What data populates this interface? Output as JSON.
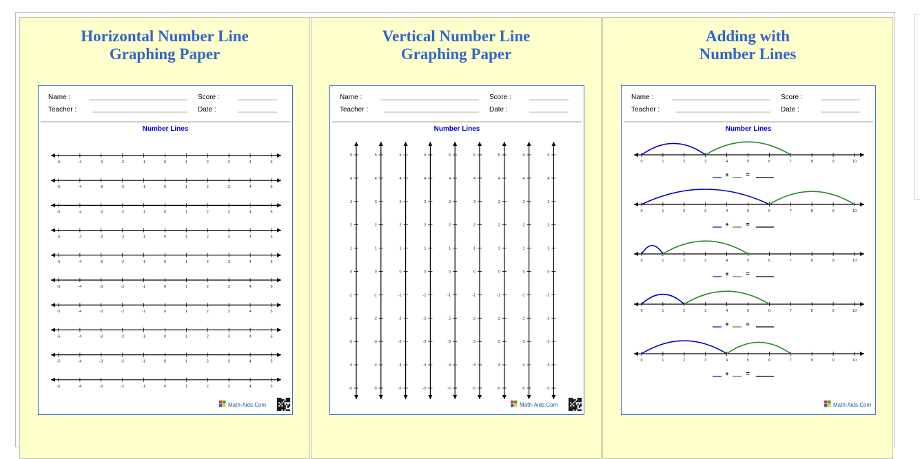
{
  "panels": [
    {
      "title_line1": "Horizontal Number Line",
      "title_line2": "Graphing Paper",
      "kind": "horizontal"
    },
    {
      "title_line1": "Vertical Number Line",
      "title_line2": "Graphing Paper",
      "kind": "vertical"
    },
    {
      "title_line1": "Adding with",
      "title_line2": "Number Lines",
      "kind": "adding"
    }
  ],
  "worksheet": {
    "name_label": "Name :",
    "score_label": "Score :",
    "teacher_label": "Teacher :",
    "date_label": "Date :",
    "heading": "Number Lines",
    "brand": "Math-Aids.Com"
  },
  "horizontal_lines": {
    "count": 10,
    "ticks": [
      -5,
      -4,
      -3,
      -2,
      -1,
      0,
      1,
      2,
      3,
      4,
      5
    ]
  },
  "vertical_lines": {
    "count": 9,
    "ticks": [
      5,
      4,
      3,
      2,
      1,
      0,
      -1,
      -2,
      -3,
      -4,
      -5
    ]
  },
  "adding_lines": {
    "ticks": [
      0,
      1,
      2,
      3,
      4,
      5,
      6,
      7,
      8,
      9,
      10
    ],
    "equation_symbols": {
      "plus": "+",
      "equals": "="
    },
    "problems": [
      {
        "first": 3,
        "second": 4
      },
      {
        "first": 6,
        "second": 4
      },
      {
        "first": 1,
        "second": 4
      },
      {
        "first": 2,
        "second": 4
      },
      {
        "first": 4,
        "second": 3
      }
    ],
    "colors": {
      "first": "#0000cc",
      "second": "#228b22"
    }
  }
}
